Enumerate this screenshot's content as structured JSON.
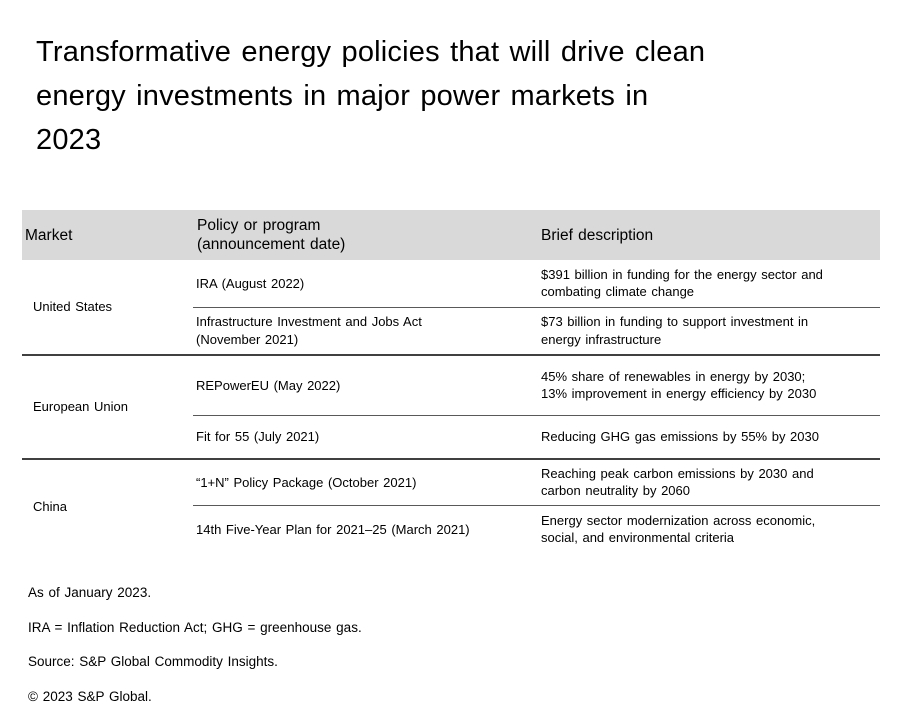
{
  "title": "Transformative energy policies that will drive clean\nenergy investments in major power markets in\n2023",
  "table": {
    "headers": {
      "market": "Market",
      "policy": "Policy or program\n(announcement date)",
      "description": "Brief description"
    },
    "sections": [
      {
        "market": "United States",
        "rows": [
          {
            "policy": "IRA (August 2022)",
            "description": "$391 billion in funding for the energy sector and\ncombating climate change"
          },
          {
            "policy": "Infrastructure Investment and Jobs Act\n(November 2021)",
            "description": "$73 billion in funding to support investment in\nenergy infrastructure"
          }
        ]
      },
      {
        "market": "European Union",
        "rows": [
          {
            "policy": "REPowerEU (May 2022)",
            "description": "45% share of renewables in energy by 2030;\n13% improvement in energy efficiency by 2030"
          },
          {
            "policy": "Fit for 55 (July 2021)",
            "description": "Reducing GHG gas emissions by 55% by 2030"
          }
        ]
      },
      {
        "market": "China",
        "rows": [
          {
            "policy": "“1+N” Policy Package (October 2021)",
            "description": "Reaching peak carbon emissions by 2030 and\ncarbon neutrality by 2060"
          },
          {
            "policy": "14th Five-Year Plan for 2021–25 (March 2021)",
            "description": "Energy sector modernization across economic,\nsocial, and environmental criteria"
          }
        ]
      }
    ]
  },
  "footnotes": [
    "As of January 2023.",
    "IRA = Inflation Reduction Act; GHG = greenhouse gas.",
    "Source: S&P Global Commodity Insights.",
    "© 2023 S&P Global."
  ],
  "colors": {
    "header_background": "#d9d9d9",
    "section_divider": "#404040",
    "subrow_divider": "#595959",
    "text": "#000000"
  }
}
